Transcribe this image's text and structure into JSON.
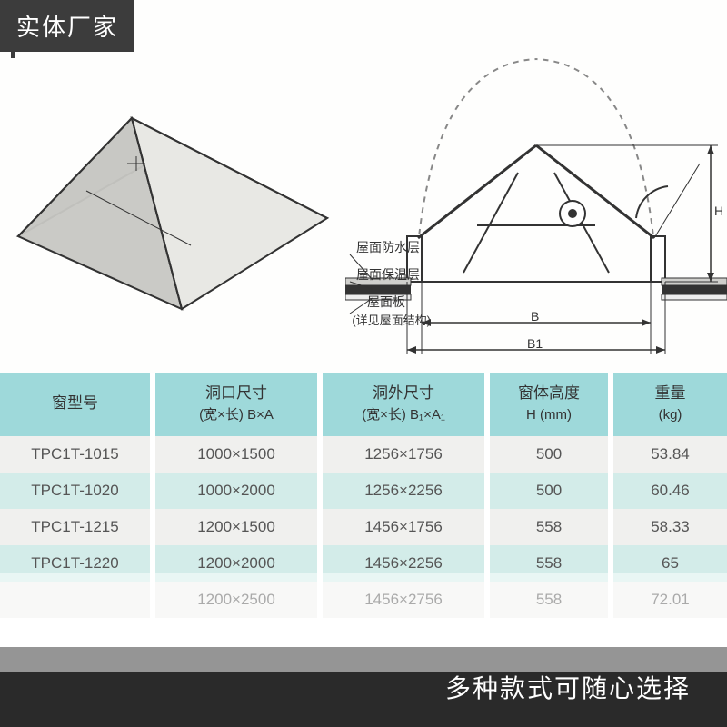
{
  "badge_tl": "实体厂家",
  "bottom_text": "多种款式可随心选择",
  "diagram": {
    "labels": {
      "waterproof": "屋面防水层",
      "insulation": "屋面保温层",
      "roof_panel": "屋面板",
      "note": "(详见屋面结构)",
      "dim_b": "B",
      "dim_b1": "B1",
      "dim_h": "H"
    },
    "colors": {
      "line": "#333333",
      "fill_light": "#e8e8e6",
      "dash": "#888888"
    }
  },
  "table": {
    "headers": [
      {
        "main": "窗型号",
        "sub": ""
      },
      {
        "main": "洞口尺寸",
        "sub": "(宽×长)\nB×A"
      },
      {
        "main": "洞外尺寸",
        "sub": "(宽×长)\nB₁×A₁"
      },
      {
        "main": "窗体高度",
        "sub": "H\n(mm)"
      },
      {
        "main": "重量",
        "sub": "(kg)"
      }
    ],
    "col_widths": [
      "21%",
      "23%",
      "23%",
      "17%",
      "16%"
    ],
    "rows": [
      [
        "TPC1T-1015",
        "1000×1500",
        "1256×1756",
        "500",
        "53.84"
      ],
      [
        "TPC1T-1020",
        "1000×2000",
        "1256×2256",
        "500",
        "60.46"
      ],
      [
        "TPC1T-1215",
        "1200×1500",
        "1456×1756",
        "558",
        "58.33"
      ],
      [
        "TPC1T-1220",
        "1200×2000",
        "1456×2256",
        "558",
        "65"
      ],
      [
        "",
        "1200×2500",
        "1456×2756",
        "558",
        "72.01"
      ]
    ],
    "header_bg": "#9ed9da",
    "row_odd_bg": "#f0f0ee",
    "row_even_bg": "#d3ece9",
    "text_color": "#555555"
  }
}
